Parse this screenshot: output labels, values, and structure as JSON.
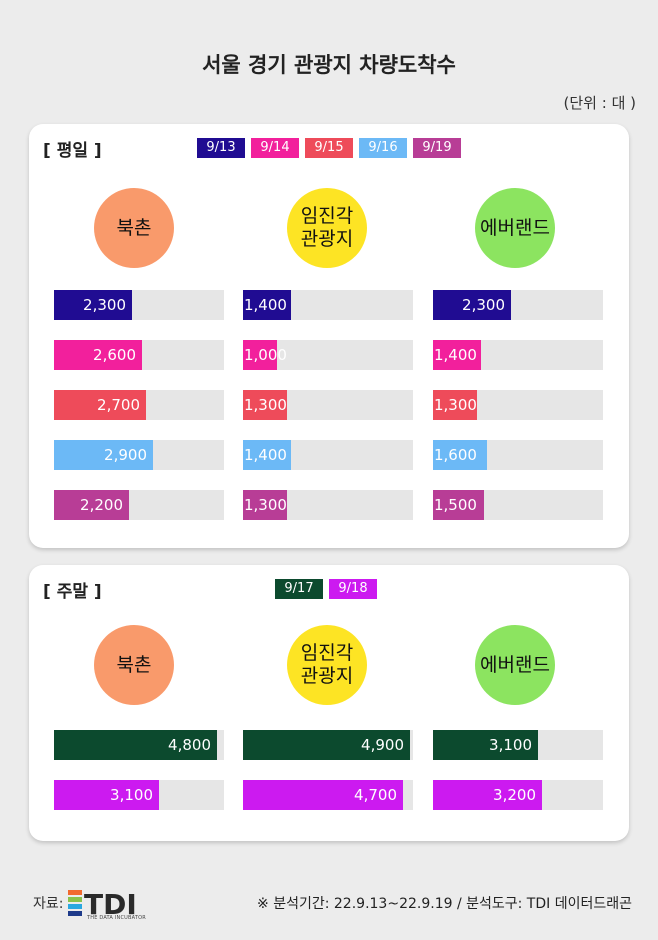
{
  "title": "서울 경기 관광지 차량도착수",
  "unit": "(단위 : 대 )",
  "colors": {
    "9/13": "#200c92",
    "9/14": "#f2209c",
    "9/15": "#ee4b5a",
    "9/16": "#6cb9f6",
    "9/19": "#b83d96",
    "9/17": "#0c4a2e",
    "9/18": "#cc1af0",
    "bukchon": "#f99a6b",
    "imjingak": "#fde424",
    "everland": "#8ce460"
  },
  "chart_data": [
    {
      "type": "bar",
      "panel_title": "[ 평일 ]",
      "locations": [
        "북촌",
        "임진각\n관광지",
        "에버랜드"
      ],
      "series": [
        {
          "name": "9/13",
          "values": [
            2300,
            1400,
            2300
          ],
          "labels": [
            "2,300",
            "1,400",
            "2,300"
          ]
        },
        {
          "name": "9/14",
          "values": [
            2600,
            1000,
            1400
          ],
          "labels": [
            "2,600",
            "1,000",
            "1,400"
          ]
        },
        {
          "name": "9/15",
          "values": [
            2700,
            1300,
            1300
          ],
          "labels": [
            "2,700",
            "1,300",
            "1,300"
          ]
        },
        {
          "name": "9/16",
          "values": [
            2900,
            1400,
            1600
          ],
          "labels": [
            "2,900",
            "1,400",
            "1,600"
          ]
        },
        {
          "name": "9/19",
          "values": [
            2200,
            1300,
            1500
          ],
          "labels": [
            "2,200",
            "1,300",
            "1,500"
          ]
        }
      ],
      "xlim": [
        0,
        5000
      ]
    },
    {
      "type": "bar",
      "panel_title": "[ 주말 ]",
      "locations": [
        "북촌",
        "임진각\n관광지",
        "에버랜드"
      ],
      "series": [
        {
          "name": "9/17",
          "values": [
            4800,
            4900,
            3100
          ],
          "labels": [
            "4,800",
            "4,900",
            "3,100"
          ]
        },
        {
          "name": "9/18",
          "values": [
            3100,
            4700,
            3200
          ],
          "labels": [
            "3,100",
            "4,700",
            "3,200"
          ]
        }
      ],
      "xlim": [
        0,
        5000
      ]
    }
  ],
  "footer": {
    "source_label": "자료:",
    "logo_text": "TDI",
    "logo_sub": "THE DATA INCUBATOR",
    "note": "※ 분석기간: 22.9.13~22.9.19 / 분석도구: TDI 데이터드래곤"
  }
}
